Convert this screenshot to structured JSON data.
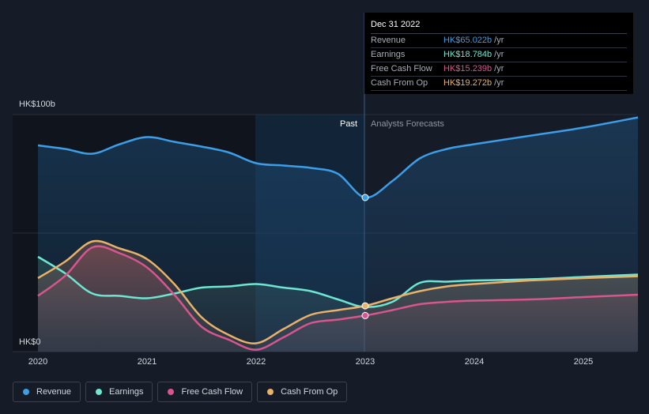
{
  "tooltip": {
    "date": "Dec 31 2022",
    "rows": [
      {
        "label": "Revenue",
        "value": "HK$65.022b",
        "unit": "/yr",
        "color": "#3d9ee8"
      },
      {
        "label": "Earnings",
        "value": "HK$18.784b",
        "unit": "/yr",
        "color": "#6ee6d2"
      },
      {
        "label": "Free Cash Flow",
        "value": "HK$15.239b",
        "unit": "/yr",
        "color": "#d8568e"
      },
      {
        "label": "Cash From Op",
        "value": "HK$19.272b",
        "unit": "/yr",
        "color": "#e8b26a"
      }
    ]
  },
  "legend": [
    {
      "label": "Revenue",
      "color": "#3d9ee8"
    },
    {
      "label": "Earnings",
      "color": "#6ee6d2"
    },
    {
      "label": "Free Cash Flow",
      "color": "#d8568e"
    },
    {
      "label": "Cash From Op",
      "color": "#e8b26a"
    }
  ],
  "chart_data": {
    "type": "line",
    "ylabel_top": "HK$100b",
    "ylabel_bottom": "HK$0",
    "ylim": [
      0,
      100
    ],
    "xlim": [
      2020.0,
      2025.5
    ],
    "x_ticks": [
      "2020",
      "2021",
      "2022",
      "2023",
      "2024",
      "2025"
    ],
    "past_label": "Past",
    "forecast_label": "Analysts Forecasts",
    "divider_x": 2023.0,
    "highlight_range": [
      2022.0,
      2023.0
    ],
    "series": [
      {
        "name": "Revenue",
        "color": "#3d9ee8",
        "points": [
          [
            2020.0,
            87
          ],
          [
            2020.25,
            85.5
          ],
          [
            2020.5,
            83.5
          ],
          [
            2020.75,
            87.5
          ],
          [
            2021.0,
            90.5
          ],
          [
            2021.25,
            88.5
          ],
          [
            2021.5,
            86.5
          ],
          [
            2021.75,
            84
          ],
          [
            2022.0,
            79.5
          ],
          [
            2022.25,
            78.5
          ],
          [
            2022.5,
            77.5
          ],
          [
            2022.75,
            75
          ],
          [
            2023.0,
            65
          ],
          [
            2023.25,
            72
          ],
          [
            2023.5,
            81.5
          ],
          [
            2023.75,
            85.5
          ],
          [
            2024.0,
            87.5
          ],
          [
            2024.5,
            91
          ],
          [
            2025.0,
            94.5
          ],
          [
            2025.5,
            98.8
          ]
        ]
      },
      {
        "name": "Earnings",
        "color": "#6ee6d2",
        "points": [
          [
            2020.0,
            40
          ],
          [
            2020.25,
            33
          ],
          [
            2020.5,
            24.5
          ],
          [
            2020.75,
            23.5
          ],
          [
            2021.0,
            22.5
          ],
          [
            2021.25,
            24.5
          ],
          [
            2021.5,
            27
          ],
          [
            2021.75,
            27.5
          ],
          [
            2022.0,
            28.5
          ],
          [
            2022.25,
            27
          ],
          [
            2022.5,
            25.5
          ],
          [
            2022.75,
            22
          ],
          [
            2023.0,
            18.8
          ],
          [
            2023.25,
            21
          ],
          [
            2023.5,
            29
          ],
          [
            2023.75,
            29.5
          ],
          [
            2024.0,
            30
          ],
          [
            2024.5,
            30.5
          ],
          [
            2025.0,
            31.5
          ],
          [
            2025.5,
            32.5
          ]
        ]
      },
      {
        "name": "Free Cash Flow",
        "color": "#d8568e",
        "points": [
          [
            2020.0,
            23.5
          ],
          [
            2020.25,
            32
          ],
          [
            2020.5,
            44
          ],
          [
            2020.75,
            41.5
          ],
          [
            2021.0,
            35.5
          ],
          [
            2021.25,
            24
          ],
          [
            2021.5,
            10.5
          ],
          [
            2021.75,
            5
          ],
          [
            2022.0,
            0.8
          ],
          [
            2022.25,
            6
          ],
          [
            2022.5,
            12
          ],
          [
            2022.75,
            13.5
          ],
          [
            2023.0,
            15.2
          ],
          [
            2023.25,
            17.5
          ],
          [
            2023.5,
            20
          ],
          [
            2023.75,
            21
          ],
          [
            2024.0,
            21.5
          ],
          [
            2024.5,
            22
          ],
          [
            2025.0,
            23
          ],
          [
            2025.5,
            24
          ]
        ]
      },
      {
        "name": "Cash From Op",
        "color": "#e8b26a",
        "points": [
          [
            2020.0,
            31
          ],
          [
            2020.25,
            38
          ],
          [
            2020.5,
            46.5
          ],
          [
            2020.75,
            43.5
          ],
          [
            2021.0,
            39
          ],
          [
            2021.25,
            28.5
          ],
          [
            2021.5,
            14.5
          ],
          [
            2021.75,
            7
          ],
          [
            2022.0,
            3.5
          ],
          [
            2022.25,
            9.5
          ],
          [
            2022.5,
            15.5
          ],
          [
            2022.75,
            17.5
          ],
          [
            2023.0,
            19.3
          ],
          [
            2023.25,
            22.5
          ],
          [
            2023.5,
            25.5
          ],
          [
            2023.75,
            27.5
          ],
          [
            2024.0,
            28.5
          ],
          [
            2024.5,
            30
          ],
          [
            2025.0,
            31
          ],
          [
            2025.5,
            31.8
          ]
        ]
      }
    ],
    "markers": [
      {
        "series": "Revenue",
        "x": 2023.0,
        "y": 65.0
      },
      {
        "series": "Cash From Op",
        "x": 2023.0,
        "y": 19.3
      },
      {
        "series": "Free Cash Flow",
        "x": 2023.0,
        "y": 15.2
      }
    ]
  }
}
